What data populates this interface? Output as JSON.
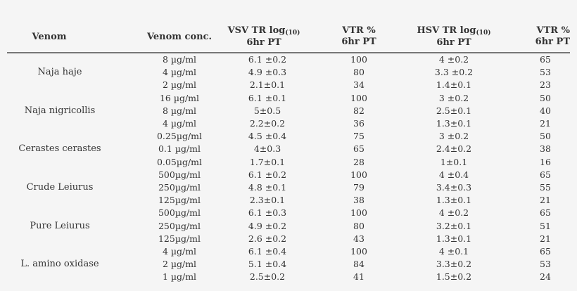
{
  "table": {
    "headers": {
      "venom": "Venom",
      "venom_conc": "Venom conc.",
      "vsv_tr_line1": "VSV  TR log",
      "vsv_tr_sub": "(10)",
      "vsv_tr_line2": "6hr PT",
      "vtr1_line1": "VTR  %",
      "vtr1_line2": "6hr PT",
      "hsv_tr_line1": "HSV TR log",
      "hsv_tr_sub": "(10)",
      "hsv_tr_line2": "6hr PT",
      "vtr2_line1": "VTR  %",
      "vtr2_line2": "6hr PT"
    },
    "groups": [
      {
        "venom": "Naja haje",
        "rows": [
          {
            "conc": "8 µg/ml",
            "vsv": "6.1 ±0.2",
            "vtr1": "100",
            "hsv": "4 ±0.2",
            "vtr2": "65"
          },
          {
            "conc": "4 µg/ml",
            "vsv": "4.9 ±0.3",
            "vtr1": "80",
            "hsv": "3.3 ±0.2",
            "vtr2": "53"
          },
          {
            "conc": "2 µg/ml",
            "vsv": "2.1±0.1",
            "vtr1": "34",
            "hsv": "1.4±0.1",
            "vtr2": "23"
          }
        ]
      },
      {
        "venom": "Naja nigricollis",
        "rows": [
          {
            "conc": "16 µg/ml",
            "vsv": "6.1 ±0.1",
            "vtr1": "100",
            "hsv": "3 ±0.2",
            "vtr2": "50"
          },
          {
            "conc": "8 µg/ml",
            "vsv": "5±0.5",
            "vtr1": "82",
            "hsv": "2.5±0.1",
            "vtr2": "40"
          },
          {
            "conc": "4 µg/ml",
            "vsv": "2.2±0.2",
            "vtr1": "36",
            "hsv": "1.3±0.1",
            "vtr2": "21"
          }
        ]
      },
      {
        "venom": "Cerastes cerastes",
        "rows": [
          {
            "conc": "0.25µg/ml",
            "vsv": "4.5 ±0.4",
            "vtr1": "75",
            "hsv": "3 ±0.2",
            "vtr2": "50"
          },
          {
            "conc": "0.1 µg/ml",
            "vsv": "4±0.3",
            "vtr1": "65",
            "hsv": "2.4±0.2",
            "vtr2": "38"
          },
          {
            "conc": "0.05µg/ml",
            "vsv": "1.7±0.1",
            "vtr1": "28",
            "hsv": "1±0.1",
            "vtr2": "16"
          }
        ]
      },
      {
        "venom": "Crude Leiurus",
        "rows": [
          {
            "conc": "500µg/ml",
            "vsv": "6.1 ±0.2",
            "vtr1": "100",
            "hsv": "4 ±0.4",
            "vtr2": "65"
          },
          {
            "conc": "250µg/ml",
            "vsv": "4.8 ±0.1",
            "vtr1": "79",
            "hsv": "3.4±0.3",
            "vtr2": "55"
          },
          {
            "conc": "125µg/ml",
            "vsv": "2.3±0.1",
            "vtr1": "38",
            "hsv": "1.3±0.1",
            "vtr2": "21"
          }
        ]
      },
      {
        "venom": "Pure Leiurus",
        "rows": [
          {
            "conc": "500µg/ml",
            "vsv": "6.1 ±0.3",
            "vtr1": "100",
            "hsv": "4 ±0.2",
            "vtr2": "65"
          },
          {
            "conc": "250µg/ml",
            "vsv": "4.9 ±0.2",
            "vtr1": "80",
            "hsv": "3.2±0.1",
            "vtr2": "51"
          },
          {
            "conc": "125µg/ml",
            "vsv": "2.6 ±0.2",
            "vtr1": "43",
            "hsv": "1.3±0.1",
            "vtr2": "21"
          }
        ]
      },
      {
        "venom": "L. amino oxidase",
        "rows": [
          {
            "conc": "4 µg/ml",
            "vsv": "6.1 ±0.4",
            "vtr1": "100",
            "hsv": "4 ±0.1",
            "vtr2": "65"
          },
          {
            "conc": "2 µg/ml",
            "vsv": "5.1 ±0.4",
            "vtr1": "84",
            "hsv": "3.3±0.2",
            "vtr2": "53"
          },
          {
            "conc": "1 µg/ml",
            "vsv": "2.5±0.2",
            "vtr1": "41",
            "hsv": "1.5±0.2",
            "vtr2": "24"
          }
        ]
      }
    ]
  }
}
